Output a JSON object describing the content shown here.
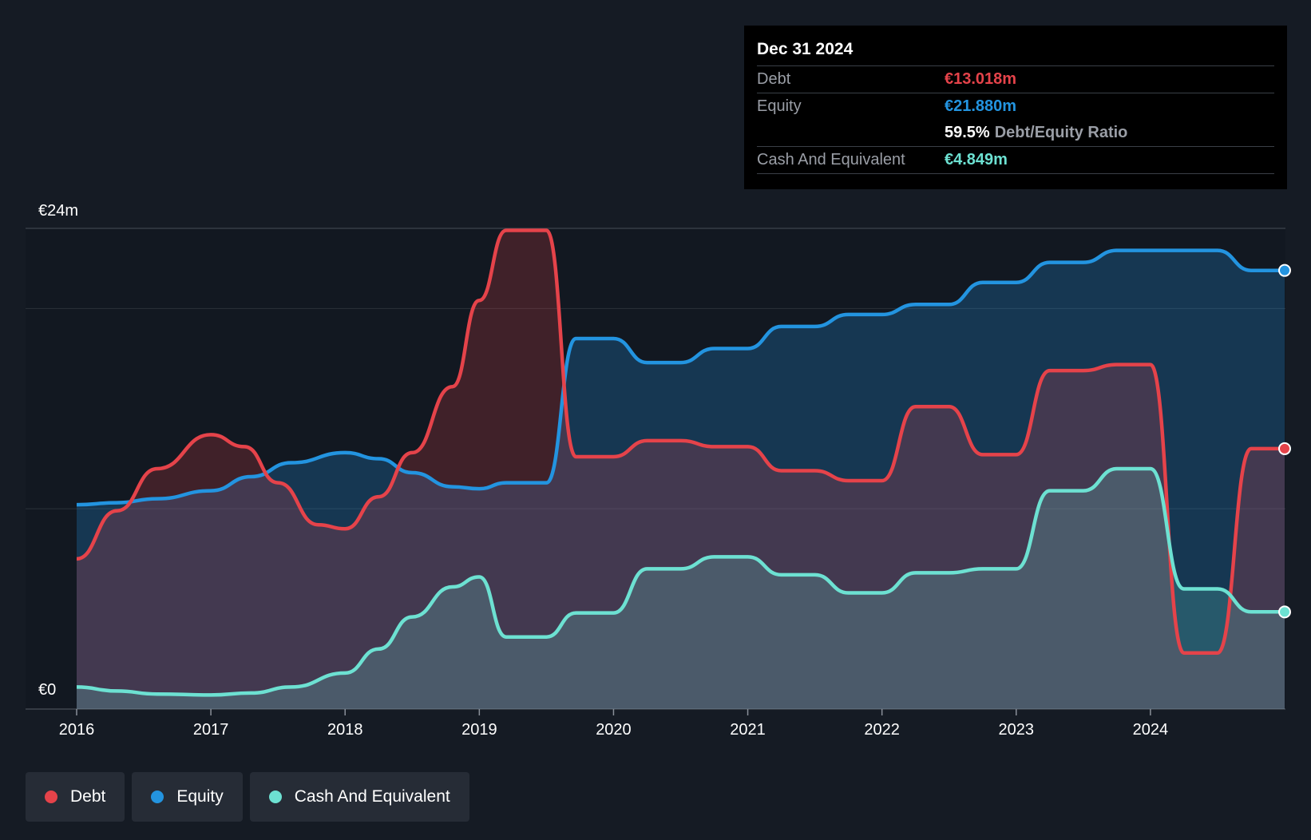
{
  "tooltip": {
    "date": "Dec 31 2024",
    "debt_label": "Debt",
    "debt_value": "€13.018m",
    "equity_label": "Equity",
    "equity_value": "€21.880m",
    "ratio_value": "59.5%",
    "ratio_label": "Debt/Equity Ratio",
    "cash_label": "Cash And Equivalent",
    "cash_value": "€4.849m"
  },
  "legend": {
    "debt": "Debt",
    "equity": "Equity",
    "cash": "Cash And Equivalent"
  },
  "colors": {
    "debt": "#e5434a",
    "equity": "#2394e0",
    "cash": "#6de1d2",
    "background": "#151b24"
  },
  "chart_data": {
    "type": "area",
    "title": "",
    "y_top_label": "€24m",
    "y_bottom_label": "€0",
    "ylim": [
      0,
      24
    ],
    "xlim": [
      2016,
      2025
    ],
    "x_tick_labels": [
      "2016",
      "2017",
      "2018",
      "2019",
      "2020",
      "2021",
      "2022",
      "2023",
      "2024"
    ],
    "series": [
      {
        "name": "Debt",
        "points": [
          [
            2016,
            7.5
          ],
          [
            2016.3,
            9.9
          ],
          [
            2016.6,
            12.0
          ],
          [
            2017,
            13.7
          ],
          [
            2017.25,
            13.1
          ],
          [
            2017.5,
            11.3
          ],
          [
            2017.8,
            9.2
          ],
          [
            2018,
            9.0
          ],
          [
            2018.25,
            10.6
          ],
          [
            2018.5,
            12.8
          ],
          [
            2018.8,
            16.1
          ],
          [
            2019,
            20.4
          ],
          [
            2019.2,
            23.9
          ],
          [
            2019.5,
            23.9
          ],
          [
            2019.72,
            12.6
          ],
          [
            2020,
            12.6
          ],
          [
            2020.25,
            13.4
          ],
          [
            2020.5,
            13.4
          ],
          [
            2020.75,
            13.1
          ],
          [
            2021,
            13.1
          ],
          [
            2021.25,
            11.9
          ],
          [
            2021.5,
            11.9
          ],
          [
            2021.75,
            11.4
          ],
          [
            2022,
            11.4
          ],
          [
            2022.25,
            15.1
          ],
          [
            2022.5,
            15.1
          ],
          [
            2022.75,
            12.7
          ],
          [
            2023,
            12.7
          ],
          [
            2023.25,
            16.9
          ],
          [
            2023.5,
            16.9
          ],
          [
            2023.75,
            17.2
          ],
          [
            2024,
            17.2
          ],
          [
            2024.25,
            2.8
          ],
          [
            2024.5,
            2.8
          ],
          [
            2024.75,
            13.0
          ],
          [
            2025,
            13.0
          ]
        ]
      },
      {
        "name": "Equity",
        "points": [
          [
            2016,
            10.2
          ],
          [
            2016.3,
            10.3
          ],
          [
            2016.6,
            10.5
          ],
          [
            2017,
            10.9
          ],
          [
            2017.3,
            11.6
          ],
          [
            2017.6,
            12.3
          ],
          [
            2018,
            12.8
          ],
          [
            2018.25,
            12.5
          ],
          [
            2018.5,
            11.8
          ],
          [
            2018.8,
            11.1
          ],
          [
            2019,
            11.0
          ],
          [
            2019.2,
            11.3
          ],
          [
            2019.5,
            11.3
          ],
          [
            2019.72,
            18.5
          ],
          [
            2020,
            18.5
          ],
          [
            2020.25,
            17.3
          ],
          [
            2020.5,
            17.3
          ],
          [
            2020.75,
            18.0
          ],
          [
            2021,
            18.0
          ],
          [
            2021.25,
            19.1
          ],
          [
            2021.5,
            19.1
          ],
          [
            2021.75,
            19.7
          ],
          [
            2022,
            19.7
          ],
          [
            2022.25,
            20.2
          ],
          [
            2022.5,
            20.2
          ],
          [
            2022.75,
            21.3
          ],
          [
            2023,
            21.3
          ],
          [
            2023.25,
            22.3
          ],
          [
            2023.5,
            22.3
          ],
          [
            2023.75,
            22.9
          ],
          [
            2024,
            22.9
          ],
          [
            2024.25,
            22.9
          ],
          [
            2024.5,
            22.9
          ],
          [
            2024.75,
            21.9
          ],
          [
            2025,
            21.9
          ]
        ]
      },
      {
        "name": "Cash And Equivalent",
        "points": [
          [
            2016,
            1.1
          ],
          [
            2016.3,
            0.9
          ],
          [
            2016.6,
            0.75
          ],
          [
            2017,
            0.7
          ],
          [
            2017.3,
            0.8
          ],
          [
            2017.6,
            1.1
          ],
          [
            2018,
            1.8
          ],
          [
            2018.25,
            3.0
          ],
          [
            2018.5,
            4.6
          ],
          [
            2018.8,
            6.1
          ],
          [
            2019,
            6.6
          ],
          [
            2019.2,
            3.6
          ],
          [
            2019.5,
            3.6
          ],
          [
            2019.72,
            4.8
          ],
          [
            2020,
            4.8
          ],
          [
            2020.25,
            7.0
          ],
          [
            2020.5,
            7.0
          ],
          [
            2020.75,
            7.6
          ],
          [
            2021,
            7.6
          ],
          [
            2021.25,
            6.7
          ],
          [
            2021.5,
            6.7
          ],
          [
            2021.75,
            5.8
          ],
          [
            2022,
            5.8
          ],
          [
            2022.25,
            6.8
          ],
          [
            2022.5,
            6.8
          ],
          [
            2022.75,
            7.0
          ],
          [
            2023,
            7.0
          ],
          [
            2023.25,
            10.9
          ],
          [
            2023.5,
            10.9
          ],
          [
            2023.75,
            12.0
          ],
          [
            2024,
            12.0
          ],
          [
            2024.25,
            6.0
          ],
          [
            2024.5,
            6.0
          ],
          [
            2024.75,
            4.85
          ],
          [
            2025,
            4.85
          ]
        ]
      }
    ]
  }
}
